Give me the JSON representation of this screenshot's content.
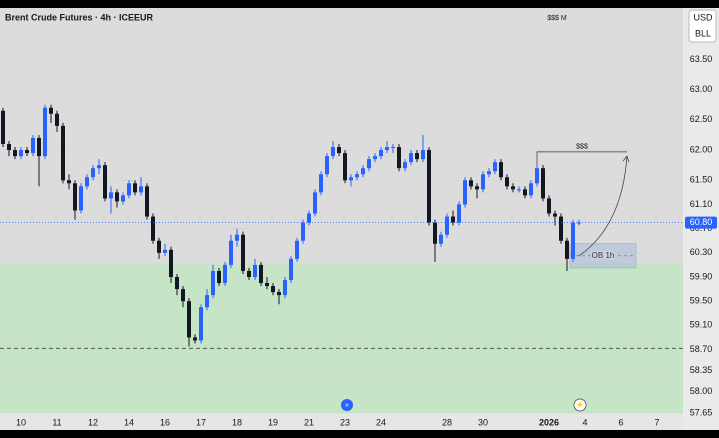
{
  "chart_data": {
    "type": "candlestick",
    "title": "Brent Crude Futures · 4h · ICEEUR",
    "top_note": "$$$ M",
    "currency": "USD",
    "unit": "BLL",
    "up_color": "#2962ff",
    "down_color": "#131722",
    "ylim": [
      57.65,
      64.35
    ],
    "yticks": [
      {
        "value": 63.5,
        "label": "63.50"
      },
      {
        "value": 63.0,
        "label": "63.00"
      },
      {
        "value": 62.5,
        "label": "62.50"
      },
      {
        "value": 62.0,
        "label": "62.00"
      },
      {
        "value": 61.5,
        "label": "61.50"
      },
      {
        "value": 61.1,
        "label": "61.10"
      },
      {
        "value": 60.7,
        "label": "60.70"
      },
      {
        "value": 60.3,
        "label": "60.30"
      },
      {
        "value": 59.9,
        "label": "59.90"
      },
      {
        "value": 59.5,
        "label": "59.50"
      },
      {
        "value": 59.1,
        "label": "59.10"
      },
      {
        "value": 58.7,
        "label": "58.70"
      },
      {
        "value": 58.35,
        "label": "58.35"
      },
      {
        "value": 58.0,
        "label": "58.00"
      },
      {
        "value": 57.65,
        "label": "57.65"
      }
    ],
    "categories": [
      null,
      null,
      null,
      "10",
      null,
      null,
      null,
      null,
      null,
      "11",
      null,
      null,
      null,
      null,
      null,
      "12",
      null,
      null,
      null,
      null,
      null,
      "14",
      null,
      null,
      null,
      null,
      null,
      "16",
      null,
      null,
      null,
      null,
      null,
      "17",
      null,
      null,
      null,
      null,
      null,
      "18",
      null,
      null,
      null,
      null,
      null,
      "19",
      null,
      null,
      null,
      null,
      null,
      "21",
      null,
      null,
      null,
      null,
      null,
      "23",
      null,
      null,
      null,
      null,
      null,
      "24",
      null,
      null,
      null,
      null,
      null,
      null,
      null,
      null,
      null,
      null,
      "28",
      null,
      null,
      null,
      null,
      null,
      "30",
      null,
      null,
      null,
      null,
      null,
      null,
      null,
      null,
      null,
      null,
      "2026",
      null,
      null,
      null,
      null,
      null,
      "4",
      null,
      null,
      null,
      null,
      null,
      "6",
      null,
      null,
      null,
      null,
      null,
      "7"
    ],
    "ohlc": [
      [
        62.65,
        62.7,
        62.05,
        62.1
      ],
      [
        62.1,
        62.15,
        61.9,
        62.0
      ],
      [
        62.0,
        62.05,
        61.85,
        61.9
      ],
      [
        61.9,
        62.05,
        61.85,
        62.0
      ],
      [
        62.0,
        62.05,
        61.9,
        61.95
      ],
      [
        61.95,
        62.25,
        61.9,
        62.2
      ],
      [
        62.2,
        62.25,
        61.4,
        61.9
      ],
      [
        61.9,
        62.75,
        61.85,
        62.7
      ],
      [
        62.7,
        62.75,
        62.45,
        62.6
      ],
      [
        62.6,
        62.65,
        62.3,
        62.4
      ],
      [
        62.4,
        62.45,
        61.45,
        61.5
      ],
      [
        61.5,
        61.6,
        61.35,
        61.45
      ],
      [
        61.45,
        61.5,
        60.85,
        61.0
      ],
      [
        61.0,
        61.45,
        60.95,
        61.4
      ],
      [
        61.4,
        61.6,
        61.35,
        61.55
      ],
      [
        61.55,
        61.75,
        61.5,
        61.7
      ],
      [
        61.7,
        61.85,
        61.6,
        61.75
      ],
      [
        61.75,
        61.8,
        61.15,
        61.2
      ],
      [
        61.2,
        61.4,
        60.95,
        61.3
      ],
      [
        61.3,
        61.35,
        61.05,
        61.15
      ],
      [
        61.15,
        61.3,
        61.1,
        61.25
      ],
      [
        61.25,
        61.5,
        61.2,
        61.45
      ],
      [
        61.45,
        61.5,
        61.25,
        61.3
      ],
      [
        61.3,
        61.55,
        61.25,
        61.4
      ],
      [
        61.4,
        61.45,
        60.85,
        60.9
      ],
      [
        60.9,
        60.95,
        60.45,
        60.5
      ],
      [
        60.5,
        60.55,
        60.2,
        60.3
      ],
      [
        60.3,
        60.45,
        60.25,
        60.35
      ],
      [
        60.35,
        60.4,
        59.8,
        59.9
      ],
      [
        59.9,
        59.95,
        59.6,
        59.7
      ],
      [
        59.7,
        59.75,
        59.4,
        59.5
      ],
      [
        59.5,
        59.55,
        58.75,
        58.9
      ],
      [
        58.9,
        58.95,
        58.8,
        58.85
      ],
      [
        58.85,
        59.45,
        58.8,
        59.4
      ],
      [
        59.4,
        59.7,
        59.35,
        59.6
      ],
      [
        59.6,
        60.1,
        59.55,
        60.0
      ],
      [
        60.0,
        60.05,
        59.75,
        59.8
      ],
      [
        59.8,
        60.15,
        59.75,
        60.1
      ],
      [
        60.1,
        60.6,
        60.05,
        60.5
      ],
      [
        60.5,
        60.7,
        60.4,
        60.6
      ],
      [
        60.6,
        60.65,
        59.95,
        60.0
      ],
      [
        60.0,
        60.05,
        59.85,
        59.9
      ],
      [
        59.9,
        60.2,
        59.85,
        60.1
      ],
      [
        60.1,
        60.15,
        59.75,
        59.8
      ],
      [
        59.8,
        59.9,
        59.7,
        59.75
      ],
      [
        59.75,
        59.8,
        59.6,
        59.65
      ],
      [
        59.65,
        59.7,
        59.45,
        59.6
      ],
      [
        59.6,
        59.9,
        59.55,
        59.85
      ],
      [
        59.85,
        60.25,
        59.8,
        60.2
      ],
      [
        60.2,
        60.55,
        60.15,
        60.5
      ],
      [
        60.5,
        60.85,
        60.45,
        60.8
      ],
      [
        60.8,
        61.0,
        60.75,
        60.95
      ],
      [
        60.95,
        61.35,
        60.9,
        61.3
      ],
      [
        61.3,
        61.65,
        61.25,
        61.6
      ],
      [
        61.6,
        61.95,
        61.55,
        61.9
      ],
      [
        61.9,
        62.15,
        61.85,
        62.05
      ],
      [
        62.05,
        62.1,
        61.9,
        61.95
      ],
      [
        61.95,
        62.0,
        61.45,
        61.5
      ],
      [
        61.5,
        61.6,
        61.4,
        61.55
      ],
      [
        61.55,
        61.65,
        61.5,
        61.6
      ],
      [
        61.6,
        61.75,
        61.55,
        61.7
      ],
      [
        61.7,
        61.9,
        61.65,
        61.85
      ],
      [
        61.85,
        61.95,
        61.8,
        61.9
      ],
      [
        61.9,
        62.05,
        61.85,
        62.0
      ],
      [
        62.0,
        62.15,
        61.95,
        62.05
      ],
      [
        62.05,
        62.1,
        61.95,
        62.05
      ],
      [
        62.05,
        62.1,
        61.65,
        61.7
      ],
      [
        61.7,
        61.85,
        61.65,
        61.8
      ],
      [
        61.8,
        62.0,
        61.75,
        61.95
      ],
      [
        61.95,
        62.0,
        61.8,
        61.85
      ],
      [
        61.85,
        62.25,
        61.8,
        62.0
      ],
      [
        62.0,
        62.05,
        60.75,
        60.8
      ],
      [
        60.8,
        60.85,
        60.15,
        60.45
      ],
      [
        60.45,
        60.65,
        60.4,
        60.6
      ],
      [
        60.6,
        60.95,
        60.55,
        60.9
      ],
      [
        60.9,
        61.0,
        60.75,
        60.8
      ],
      [
        60.8,
        61.15,
        60.75,
        61.1
      ],
      [
        61.1,
        61.55,
        61.05,
        61.5
      ],
      [
        61.5,
        61.55,
        61.35,
        61.4
      ],
      [
        61.4,
        61.45,
        61.2,
        61.35
      ],
      [
        61.35,
        61.65,
        61.3,
        61.6
      ],
      [
        61.6,
        61.7,
        61.55,
        61.65
      ],
      [
        61.65,
        61.85,
        61.6,
        61.8
      ],
      [
        61.8,
        61.85,
        61.5,
        61.55
      ],
      [
        61.55,
        61.6,
        61.35,
        61.4
      ],
      [
        61.4,
        61.45,
        61.3,
        61.35
      ],
      [
        61.35,
        61.4,
        61.3,
        61.35
      ],
      [
        61.35,
        61.4,
        61.2,
        61.25
      ],
      [
        61.25,
        61.5,
        61.2,
        61.45
      ],
      [
        61.45,
        61.75,
        61.4,
        61.7
      ],
      [
        61.7,
        61.75,
        61.15,
        61.2
      ],
      [
        61.2,
        61.25,
        60.9,
        60.95
      ],
      [
        60.95,
        61.0,
        60.75,
        60.9
      ],
      [
        60.9,
        60.95,
        60.45,
        60.5
      ],
      [
        60.5,
        60.55,
        60.0,
        60.2
      ],
      [
        60.2,
        60.85,
        60.15,
        60.8
      ],
      [
        60.8,
        60.85,
        60.75,
        60.8
      ],
      null,
      null,
      null,
      null,
      null,
      null,
      null,
      null,
      null,
      null,
      null,
      null,
      null
    ],
    "demand_zone_top": 60.13,
    "level": 58.72,
    "order_block": {
      "label": "OB 1h",
      "x": [
        95,
        105
      ],
      "y": [
        60.05,
        60.45
      ]
    },
    "liquidity": {
      "label": "$$$",
      "x": [
        89,
        104
      ],
      "y": 61.97
    },
    "arrow": {
      "x": [
        96,
        104
      ],
      "y": [
        60.25,
        61.9
      ]
    },
    "last_price": {
      "value": 60.8,
      "label": "60.80"
    }
  }
}
